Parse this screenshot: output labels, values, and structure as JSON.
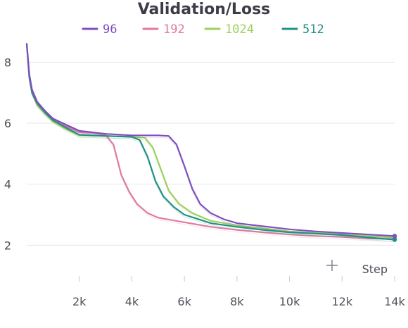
{
  "chart_data": {
    "type": "line",
    "title": "Validation/Loss",
    "xlabel": "Step",
    "ylabel": "",
    "xlim": [
      0,
      14000
    ],
    "ylim": [
      1.5,
      8.7
    ],
    "x_ticks": [
      2000,
      4000,
      6000,
      8000,
      10000,
      12000,
      14000
    ],
    "x_tick_labels": [
      "2k",
      "4k",
      "6k",
      "8k",
      "10k",
      "12k",
      "14k"
    ],
    "y_ticks": [
      2,
      4,
      6,
      8
    ],
    "y_tick_labels": [
      "2",
      "4",
      "6",
      "8"
    ],
    "grid": true,
    "legend_position": "top",
    "series": [
      {
        "name": "96",
        "color": "#7e4fbf",
        "points": [
          [
            0,
            8.6
          ],
          [
            100,
            7.6
          ],
          [
            200,
            7.1
          ],
          [
            400,
            6.7
          ],
          [
            700,
            6.4
          ],
          [
            1000,
            6.15
          ],
          [
            1500,
            5.95
          ],
          [
            2000,
            5.75
          ],
          [
            3000,
            5.65
          ],
          [
            4000,
            5.6
          ],
          [
            5000,
            5.6
          ],
          [
            5400,
            5.58
          ],
          [
            5700,
            5.3
          ],
          [
            6000,
            4.6
          ],
          [
            6300,
            3.85
          ],
          [
            6600,
            3.35
          ],
          [
            7000,
            3.05
          ],
          [
            7500,
            2.85
          ],
          [
            8000,
            2.72
          ],
          [
            9000,
            2.62
          ],
          [
            10000,
            2.52
          ],
          [
            11000,
            2.45
          ],
          [
            12000,
            2.4
          ],
          [
            13000,
            2.35
          ],
          [
            14000,
            2.3
          ]
        ]
      },
      {
        "name": "192",
        "color": "#e07a9f",
        "points": [
          [
            0,
            8.6
          ],
          [
            100,
            7.5
          ],
          [
            200,
            7.0
          ],
          [
            400,
            6.6
          ],
          [
            700,
            6.35
          ],
          [
            1000,
            6.1
          ],
          [
            1500,
            5.9
          ],
          [
            2000,
            5.7
          ],
          [
            2500,
            5.68
          ],
          [
            3000,
            5.62
          ],
          [
            3300,
            5.3
          ],
          [
            3600,
            4.3
          ],
          [
            3900,
            3.75
          ],
          [
            4200,
            3.35
          ],
          [
            4600,
            3.05
          ],
          [
            5000,
            2.9
          ],
          [
            6000,
            2.75
          ],
          [
            7000,
            2.6
          ],
          [
            8000,
            2.5
          ],
          [
            9000,
            2.42
          ],
          [
            10000,
            2.35
          ],
          [
            11000,
            2.3
          ],
          [
            12000,
            2.27
          ],
          [
            13000,
            2.22
          ],
          [
            14000,
            2.2
          ]
        ]
      },
      {
        "name": "1024",
        "color": "#9fcf5f",
        "points": [
          [
            0,
            8.6
          ],
          [
            100,
            7.5
          ],
          [
            200,
            7.0
          ],
          [
            400,
            6.6
          ],
          [
            700,
            6.3
          ],
          [
            1000,
            6.05
          ],
          [
            1500,
            5.8
          ],
          [
            2000,
            5.6
          ],
          [
            3000,
            5.58
          ],
          [
            4000,
            5.56
          ],
          [
            4500,
            5.52
          ],
          [
            4800,
            5.2
          ],
          [
            5100,
            4.5
          ],
          [
            5400,
            3.8
          ],
          [
            5800,
            3.35
          ],
          [
            6300,
            3.05
          ],
          [
            7000,
            2.8
          ],
          [
            8000,
            2.65
          ],
          [
            9000,
            2.55
          ],
          [
            10000,
            2.45
          ],
          [
            11000,
            2.4
          ],
          [
            12000,
            2.35
          ],
          [
            13000,
            2.3
          ],
          [
            14000,
            2.25
          ]
        ]
      },
      {
        "name": "512",
        "color": "#1f9185",
        "points": [
          [
            0,
            8.6
          ],
          [
            100,
            7.5
          ],
          [
            200,
            7.0
          ],
          [
            400,
            6.65
          ],
          [
            700,
            6.35
          ],
          [
            1000,
            6.1
          ],
          [
            1500,
            5.85
          ],
          [
            2000,
            5.62
          ],
          [
            3000,
            5.58
          ],
          [
            4000,
            5.55
          ],
          [
            4300,
            5.45
          ],
          [
            4600,
            4.9
          ],
          [
            4900,
            4.1
          ],
          [
            5200,
            3.6
          ],
          [
            5600,
            3.25
          ],
          [
            6000,
            3.0
          ],
          [
            7000,
            2.72
          ],
          [
            8000,
            2.6
          ],
          [
            9000,
            2.5
          ],
          [
            10000,
            2.42
          ],
          [
            11000,
            2.38
          ],
          [
            12000,
            2.33
          ],
          [
            13000,
            2.25
          ],
          [
            14000,
            2.18
          ]
        ]
      }
    ]
  }
}
